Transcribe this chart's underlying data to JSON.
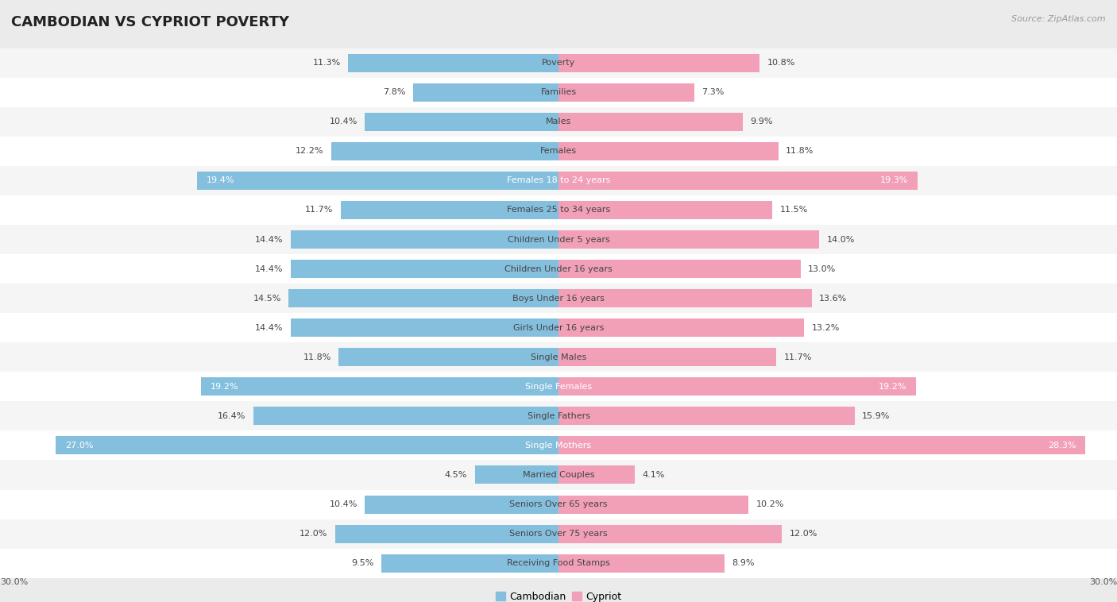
{
  "title": "CAMBODIAN VS CYPRIOT POVERTY",
  "source": "Source: ZipAtlas.com",
  "categories": [
    "Poverty",
    "Families",
    "Males",
    "Females",
    "Females 18 to 24 years",
    "Females 25 to 34 years",
    "Children Under 5 years",
    "Children Under 16 years",
    "Boys Under 16 years",
    "Girls Under 16 years",
    "Single Males",
    "Single Females",
    "Single Fathers",
    "Single Mothers",
    "Married Couples",
    "Seniors Over 65 years",
    "Seniors Over 75 years",
    "Receiving Food Stamps"
  ],
  "cambodian": [
    11.3,
    7.8,
    10.4,
    12.2,
    19.4,
    11.7,
    14.4,
    14.4,
    14.5,
    14.4,
    11.8,
    19.2,
    16.4,
    27.0,
    4.5,
    10.4,
    12.0,
    9.5
  ],
  "cypriot": [
    10.8,
    7.3,
    9.9,
    11.8,
    19.3,
    11.5,
    14.0,
    13.0,
    13.6,
    13.2,
    11.7,
    19.2,
    15.9,
    28.3,
    4.1,
    10.2,
    12.0,
    8.9
  ],
  "cambodian_color": "#85BFDE",
  "cypriot_color": "#F2A0B8",
  "background_color": "#EBEBEB",
  "row_colors": [
    "#F5F5F5",
    "#FFFFFF"
  ],
  "xmax": 30.0,
  "bar_height": 0.62,
  "title_fontsize": 13,
  "source_fontsize": 8,
  "value_fontsize": 8,
  "category_fontsize": 8,
  "legend_fontsize": 9,
  "highlight_rows": [
    4,
    11,
    13
  ],
  "legend_cambodian": "Cambodian",
  "legend_cypriot": "Cypriot"
}
